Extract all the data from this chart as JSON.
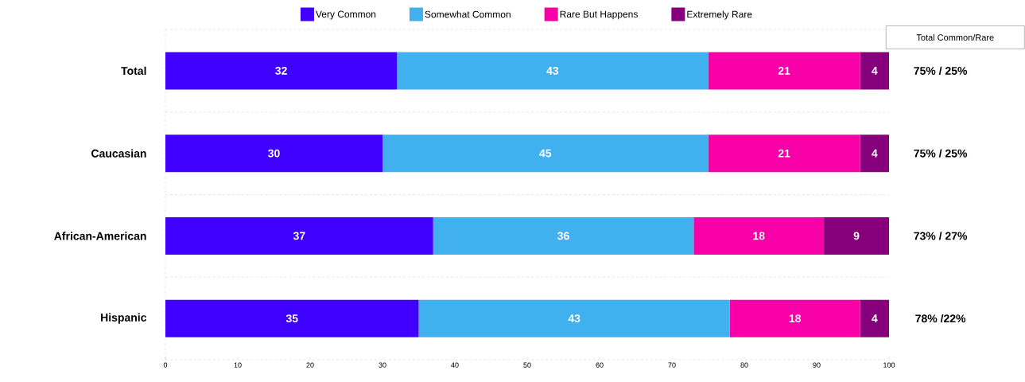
{
  "chart_data": {
    "type": "bar",
    "orientation": "horizontal",
    "stacked": true,
    "categories": [
      "Total",
      "Caucasian",
      "African-American",
      "Hispanic"
    ],
    "series": [
      {
        "name": "Very Common",
        "color": "#4000ff",
        "values": [
          32,
          30,
          37,
          35
        ]
      },
      {
        "name": "Somewhat Common",
        "color": "#41b0ef",
        "values": [
          43,
          45,
          36,
          43
        ]
      },
      {
        "name": "Rare But Happens",
        "color": "#f700a8",
        "values": [
          21,
          21,
          18,
          18
        ]
      },
      {
        "name": "Extremely Rare",
        "color": "#85007a",
        "values": [
          4,
          4,
          9,
          4
        ]
      }
    ],
    "xlim": [
      0,
      100
    ],
    "xticks": [
      0,
      10,
      20,
      30,
      40,
      50,
      60,
      70,
      80,
      90,
      100
    ],
    "grid": "y",
    "legend": "top",
    "data_labels": true,
    "annotations": [
      "Total Common/Rare",
      "75% / 25%",
      "75% / 25%",
      "73% / 27%",
      "78% /22%"
    ]
  }
}
